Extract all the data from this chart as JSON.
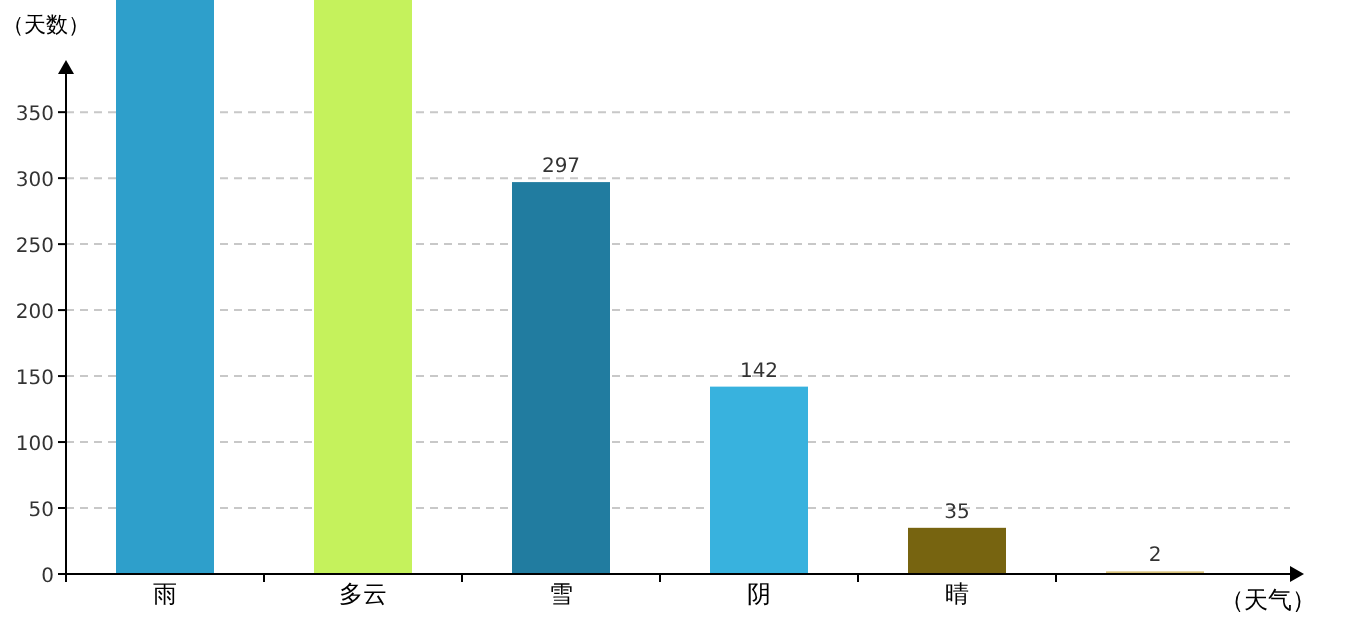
{
  "chart_data": {
    "type": "bar",
    "ylabel": "（天数）",
    "xlabel": "（天气）",
    "categories": [
      "雨",
      "多云",
      "雪",
      "阴",
      "晴",
      null
    ],
    "values": [
      435,
      435,
      297,
      142,
      35,
      2
    ],
    "colors": [
      "#2e9fcb",
      "#c5f25c",
      "#217ca0",
      "#38b2de",
      "#776410",
      "#d9c27a"
    ],
    "value_labels": [
      null,
      null,
      "297",
      "142",
      "35",
      "2"
    ],
    "ylim": [
      0,
      435
    ],
    "yticks": [
      0,
      50,
      100,
      150,
      200,
      250,
      300,
      350
    ],
    "grid": "y"
  }
}
